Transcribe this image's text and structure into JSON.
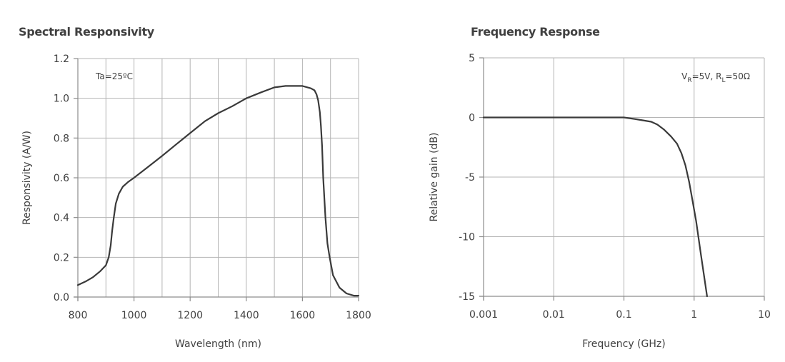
{
  "chart_data": [
    {
      "type": "line",
      "title": "Spectral Responsivity",
      "xlabel": "Wavelength (nm)",
      "ylabel": "Responsivity (A/W)",
      "xlim": [
        800,
        1800
      ],
      "ylim": [
        0.0,
        1.2
      ],
      "x_scale": "linear",
      "grid": true,
      "x_grid_step": 100,
      "y_grid_step": 0.2,
      "x_ticks": [
        800,
        1000,
        1200,
        1400,
        1600,
        1800
      ],
      "x_tick_labels": [
        "800",
        "1000",
        "1200",
        "1400",
        "1600",
        "1800"
      ],
      "y_ticks": [
        0.0,
        0.2,
        0.4,
        0.6,
        0.8,
        1.0,
        1.2
      ],
      "y_tick_labels": [
        "0.0",
        "0.2",
        "0.4",
        "0.6",
        "0.8",
        "1.0",
        "1.2"
      ],
      "annotation": "Ta=25ºC",
      "series": [
        {
          "name": "Responsivity",
          "color": "#3a3a3a",
          "x": [
            800,
            830,
            854,
            880,
            900,
            910,
            917,
            922,
            928,
            935,
            946,
            960,
            980,
            1000,
            1050,
            1100,
            1152,
            1200,
            1253,
            1300,
            1350,
            1400,
            1453,
            1500,
            1540,
            1600,
            1630,
            1643,
            1650,
            1656,
            1662,
            1666,
            1670,
            1674,
            1682,
            1689,
            1697,
            1709,
            1732,
            1757,
            1783,
            1800
          ],
          "y": [
            0.06,
            0.08,
            0.1,
            0.13,
            0.16,
            0.2,
            0.26,
            0.33,
            0.4,
            0.47,
            0.52,
            0.555,
            0.58,
            0.6,
            0.655,
            0.71,
            0.77,
            0.825,
            0.885,
            0.925,
            0.96,
            1.0,
            1.03,
            1.055,
            1.062,
            1.062,
            1.05,
            1.04,
            1.02,
            0.99,
            0.93,
            0.86,
            0.76,
            0.6,
            0.4,
            0.27,
            0.2,
            0.11,
            0.047,
            0.018,
            0.007,
            0.007
          ]
        }
      ]
    },
    {
      "type": "line",
      "title": "Frequency Response",
      "xlabel": "Frequency (GHz)",
      "ylabel": "Relative gain (dB)",
      "xlim": [
        0.001,
        10
      ],
      "ylim": [
        -15,
        5
      ],
      "x_scale": "log",
      "grid": true,
      "x_ticks": [
        0.001,
        0.01,
        0.1,
        1,
        10
      ],
      "x_tick_labels": [
        "0.001",
        "0.01",
        "0.1",
        "1",
        "10"
      ],
      "y_ticks": [
        -15,
        -10,
        -5,
        0,
        5
      ],
      "y_tick_labels": [
        "-15",
        "-10",
        "-5",
        "0",
        "5"
      ],
      "annotation": {
        "parts": [
          {
            "text": "V",
            "sub": false
          },
          {
            "text": "R",
            "sub": true
          },
          {
            "text": "=5V, R",
            "sub": false
          },
          {
            "text": "L",
            "sub": true
          },
          {
            "text": "=50Ω",
            "sub": false
          }
        ]
      },
      "series": [
        {
          "name": "Relative gain",
          "color": "#3a3a3a",
          "x": [
            0.001,
            0.01,
            0.1,
            0.15,
            0.245,
            0.3,
            0.37,
            0.47,
            0.57,
            0.66,
            0.75,
            0.85,
            0.95,
            1.07,
            1.25,
            1.53
          ],
          "y": [
            0,
            0,
            0,
            -0.15,
            -0.36,
            -0.6,
            -1.0,
            -1.6,
            -2.2,
            -3.0,
            -4.0,
            -5.4,
            -7.0,
            -8.7,
            -11.5,
            -15
          ]
        }
      ]
    }
  ]
}
